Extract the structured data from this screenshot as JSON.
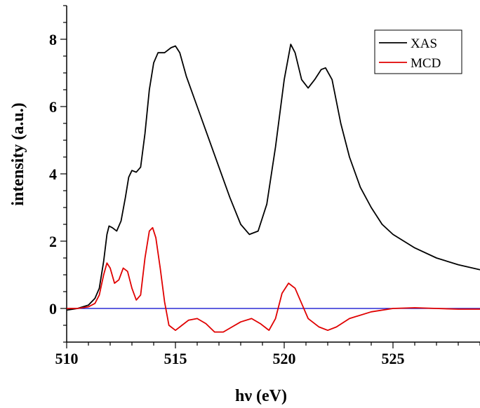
{
  "chart_data": {
    "type": "line",
    "title": "",
    "xlabel": "hν (eV)",
    "ylabel": "intensity (a.u.)",
    "xlim": [
      510,
      529
    ],
    "ylim": [
      -1,
      9
    ],
    "x_ticks": [
      510,
      515,
      520,
      525
    ],
    "y_ticks": [
      0,
      2,
      4,
      6,
      8
    ],
    "grid": false,
    "legend": {
      "position": "top-right"
    },
    "colors": {
      "XAS": "#000000",
      "MCD": "#e00000",
      "baseline": "#0000cc"
    },
    "baseline_y": 0,
    "series": [
      {
        "name": "XAS",
        "points": [
          [
            510.0,
            -0.05
          ],
          [
            510.5,
            0.0
          ],
          [
            511.0,
            0.1
          ],
          [
            511.3,
            0.3
          ],
          [
            511.5,
            0.6
          ],
          [
            511.7,
            1.4
          ],
          [
            511.85,
            2.2
          ],
          [
            511.95,
            2.45
          ],
          [
            512.1,
            2.4
          ],
          [
            512.3,
            2.3
          ],
          [
            512.5,
            2.6
          ],
          [
            512.7,
            3.3
          ],
          [
            512.85,
            3.9
          ],
          [
            513.0,
            4.1
          ],
          [
            513.2,
            4.05
          ],
          [
            513.4,
            4.2
          ],
          [
            513.6,
            5.2
          ],
          [
            513.8,
            6.5
          ],
          [
            514.0,
            7.3
          ],
          [
            514.2,
            7.6
          ],
          [
            514.5,
            7.6
          ],
          [
            514.8,
            7.75
          ],
          [
            515.0,
            7.8
          ],
          [
            515.2,
            7.6
          ],
          [
            515.5,
            6.9
          ],
          [
            516.0,
            6.0
          ],
          [
            516.5,
            5.1
          ],
          [
            517.0,
            4.2
          ],
          [
            517.5,
            3.3
          ],
          [
            518.0,
            2.5
          ],
          [
            518.4,
            2.2
          ],
          [
            518.8,
            2.3
          ],
          [
            519.2,
            3.1
          ],
          [
            519.6,
            4.8
          ],
          [
            520.0,
            6.8
          ],
          [
            520.3,
            7.85
          ],
          [
            520.5,
            7.6
          ],
          [
            520.8,
            6.8
          ],
          [
            521.1,
            6.55
          ],
          [
            521.4,
            6.8
          ],
          [
            521.7,
            7.1
          ],
          [
            521.9,
            7.15
          ],
          [
            522.2,
            6.8
          ],
          [
            522.6,
            5.5
          ],
          [
            523.0,
            4.5
          ],
          [
            523.5,
            3.6
          ],
          [
            524.0,
            3.0
          ],
          [
            524.5,
            2.5
          ],
          [
            525.0,
            2.2
          ],
          [
            526.0,
            1.8
          ],
          [
            527.0,
            1.5
          ],
          [
            528.0,
            1.3
          ],
          [
            529.0,
            1.15
          ]
        ]
      },
      {
        "name": "MCD",
        "points": [
          [
            510.0,
            0.0
          ],
          [
            510.5,
            0.0
          ],
          [
            511.0,
            0.05
          ],
          [
            511.3,
            0.15
          ],
          [
            511.5,
            0.4
          ],
          [
            511.7,
            1.0
          ],
          [
            511.85,
            1.35
          ],
          [
            512.0,
            1.2
          ],
          [
            512.2,
            0.75
          ],
          [
            512.4,
            0.85
          ],
          [
            512.6,
            1.2
          ],
          [
            512.8,
            1.1
          ],
          [
            513.0,
            0.6
          ],
          [
            513.2,
            0.25
          ],
          [
            513.4,
            0.4
          ],
          [
            513.6,
            1.5
          ],
          [
            513.8,
            2.3
          ],
          [
            513.95,
            2.4
          ],
          [
            514.1,
            2.1
          ],
          [
            514.3,
            1.2
          ],
          [
            514.5,
            0.2
          ],
          [
            514.7,
            -0.5
          ],
          [
            515.0,
            -0.65
          ],
          [
            515.3,
            -0.5
          ],
          [
            515.6,
            -0.35
          ],
          [
            516.0,
            -0.3
          ],
          [
            516.4,
            -0.45
          ],
          [
            516.8,
            -0.7
          ],
          [
            517.2,
            -0.7
          ],
          [
            517.6,
            -0.55
          ],
          [
            518.0,
            -0.4
          ],
          [
            518.5,
            -0.3
          ],
          [
            518.9,
            -0.45
          ],
          [
            519.3,
            -0.65
          ],
          [
            519.6,
            -0.3
          ],
          [
            519.9,
            0.45
          ],
          [
            520.2,
            0.75
          ],
          [
            520.5,
            0.6
          ],
          [
            520.8,
            0.15
          ],
          [
            521.1,
            -0.3
          ],
          [
            521.6,
            -0.55
          ],
          [
            522.0,
            -0.65
          ],
          [
            522.4,
            -0.55
          ],
          [
            523.0,
            -0.3
          ],
          [
            524.0,
            -0.1
          ],
          [
            525.0,
            0.0
          ],
          [
            526.0,
            0.02
          ],
          [
            527.0,
            0.0
          ],
          [
            528.0,
            -0.02
          ],
          [
            529.0,
            -0.02
          ]
        ]
      }
    ]
  }
}
